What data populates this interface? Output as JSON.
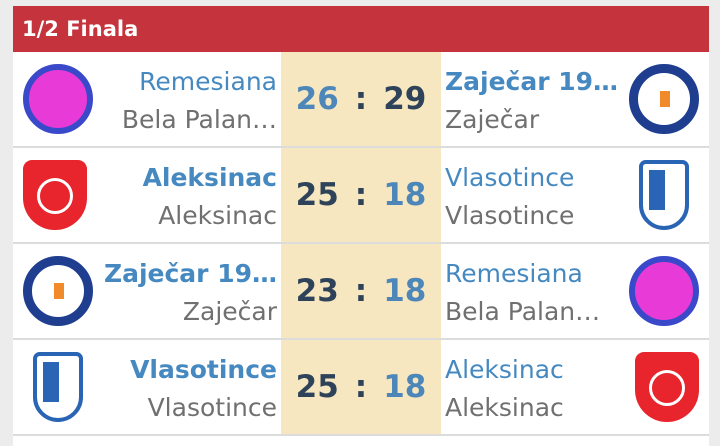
{
  "header": {
    "title": "1/2 Finala"
  },
  "colors": {
    "header": "#c5343c",
    "score_bg": "#f7e7c0",
    "winner_score": "#2e4359",
    "team_link": "#4589c0"
  },
  "matches": [
    {
      "home": {
        "name": "Remesiana",
        "city": "Bela Palan…",
        "logo": "remesiana-logo",
        "score": "26"
      },
      "away": {
        "name": "Zaječar 19…",
        "city": "Zaječar",
        "logo": "zajecar-logo",
        "score": "29"
      },
      "winner": "away",
      "sep": ":"
    },
    {
      "home": {
        "name": "Aleksinac",
        "city": "Aleksinac",
        "logo": "aleksinac-logo",
        "score": "25"
      },
      "away": {
        "name": "Vlasotince",
        "city": "Vlasotince",
        "logo": "vlasotince-logo",
        "score": "18"
      },
      "winner": "home",
      "sep": ":"
    },
    {
      "home": {
        "name": "Zaječar 19…",
        "city": "Zaječar",
        "logo": "zajecar-logo",
        "score": "23"
      },
      "away": {
        "name": "Remesiana",
        "city": "Bela Palan…",
        "logo": "remesiana-logo",
        "score": "18"
      },
      "winner": "home",
      "sep": ":"
    },
    {
      "home": {
        "name": "Vlasotince",
        "city": "Vlasotince",
        "logo": "vlasotince-logo",
        "score": "25"
      },
      "away": {
        "name": "Aleksinac",
        "city": "Aleksinac",
        "logo": "aleksinac-logo",
        "score": "18"
      },
      "winner": "home",
      "sep": ":"
    }
  ]
}
